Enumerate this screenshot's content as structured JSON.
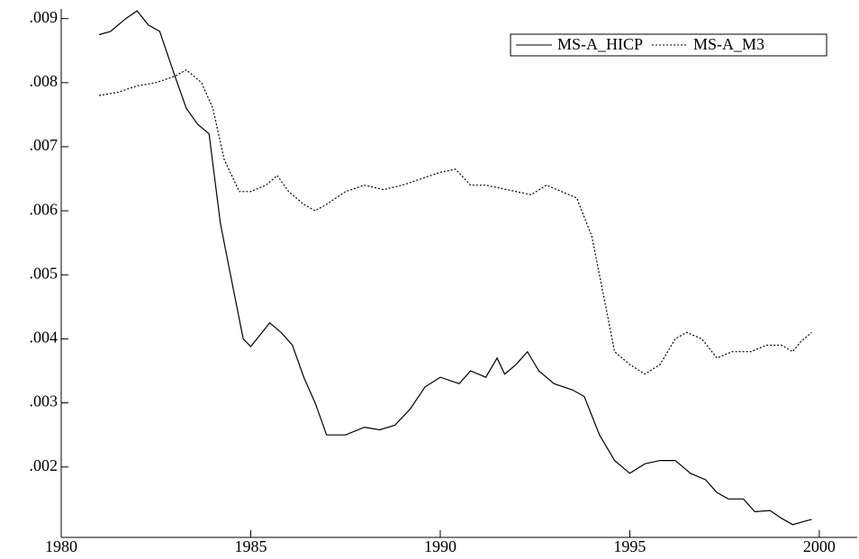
{
  "chart_data": {
    "type": "line",
    "xlim": [
      1980,
      2001
    ],
    "xticks": [
      1980,
      1985,
      1990,
      1995,
      2000
    ],
    "ylim": [
      0.0009,
      0.00915
    ],
    "yticks": [
      {
        "value": 0.002,
        "label": ".002"
      },
      {
        "value": 0.003,
        "label": ".003"
      },
      {
        "value": 0.004,
        "label": ".004"
      },
      {
        "value": 0.005,
        "label": ".005"
      },
      {
        "value": 0.006,
        "label": ".006"
      },
      {
        "value": 0.007,
        "label": ".007"
      },
      {
        "value": 0.008,
        "label": ".008"
      },
      {
        "value": 0.009,
        "label": ".009"
      }
    ],
    "legend": "top-right",
    "series": [
      {
        "name": "MS-A_HICP",
        "color": "#000000",
        "style": "solid",
        "x": [
          1981.0,
          1981.3,
          1981.7,
          1982.0,
          1982.3,
          1982.6,
          1983.0,
          1983.3,
          1983.6,
          1983.9,
          1984.2,
          1984.5,
          1984.8,
          1985.0,
          1985.3,
          1985.5,
          1985.8,
          1986.1,
          1986.4,
          1986.7,
          1987.0,
          1987.5,
          1988.0,
          1988.4,
          1988.8,
          1989.2,
          1989.6,
          1990.0,
          1990.5,
          1990.8,
          1991.2,
          1991.5,
          1991.7,
          1992.0,
          1992.3,
          1992.6,
          1993.0,
          1993.5,
          1993.8,
          1994.2,
          1994.6,
          1995.0,
          1995.4,
          1995.8,
          1996.2,
          1996.6,
          1997.0,
          1997.3,
          1997.6,
          1998.0,
          1998.3,
          1998.7,
          1999.0,
          1999.3,
          1999.6,
          1999.8
        ],
        "values": [
          0.00875,
          0.0088,
          0.009,
          0.00912,
          0.0089,
          0.0088,
          0.0081,
          0.0076,
          0.00735,
          0.0072,
          0.0058,
          0.0049,
          0.004,
          0.00388,
          0.0041,
          0.00425,
          0.0041,
          0.0039,
          0.0034,
          0.003,
          0.0025,
          0.0025,
          0.00262,
          0.00258,
          0.00265,
          0.0029,
          0.00325,
          0.0034,
          0.0033,
          0.0035,
          0.0034,
          0.0037,
          0.00345,
          0.0036,
          0.0038,
          0.0035,
          0.0033,
          0.0032,
          0.0031,
          0.0025,
          0.0021,
          0.0019,
          0.00205,
          0.0021,
          0.0021,
          0.0019,
          0.0018,
          0.0016,
          0.0015,
          0.0015,
          0.0013,
          0.00132,
          0.0012,
          0.0011,
          0.00115,
          0.00118
        ]
      },
      {
        "name": "MS-A_M3",
        "color": "#000000",
        "style": "dotted",
        "x": [
          1981.0,
          1981.5,
          1982.0,
          1982.5,
          1983.0,
          1983.3,
          1983.7,
          1984.0,
          1984.3,
          1984.7,
          1985.0,
          1985.4,
          1985.7,
          1986.0,
          1986.4,
          1986.7,
          1987.0,
          1987.5,
          1988.0,
          1988.5,
          1989.0,
          1989.5,
          1990.0,
          1990.4,
          1990.8,
          1991.2,
          1991.6,
          1992.0,
          1992.4,
          1992.8,
          1993.2,
          1993.6,
          1994.0,
          1994.3,
          1994.6,
          1995.0,
          1995.4,
          1995.8,
          1996.2,
          1996.5,
          1996.9,
          1997.3,
          1997.7,
          1998.2,
          1998.6,
          1999.0,
          1999.3,
          1999.5,
          1999.8
        ],
        "values": [
          0.0078,
          0.00785,
          0.00795,
          0.008,
          0.0081,
          0.0082,
          0.008,
          0.0076,
          0.0068,
          0.0063,
          0.0063,
          0.0064,
          0.00655,
          0.0063,
          0.0061,
          0.006,
          0.0061,
          0.0063,
          0.0064,
          0.00633,
          0.0064,
          0.0065,
          0.0066,
          0.00665,
          0.0064,
          0.0064,
          0.00635,
          0.0063,
          0.00625,
          0.0064,
          0.0063,
          0.0062,
          0.0056,
          0.0047,
          0.0038,
          0.0036,
          0.00345,
          0.0036,
          0.004,
          0.0041,
          0.004,
          0.0037,
          0.0038,
          0.0038,
          0.0039,
          0.0039,
          0.0038,
          0.00395,
          0.0041
        ]
      }
    ]
  }
}
